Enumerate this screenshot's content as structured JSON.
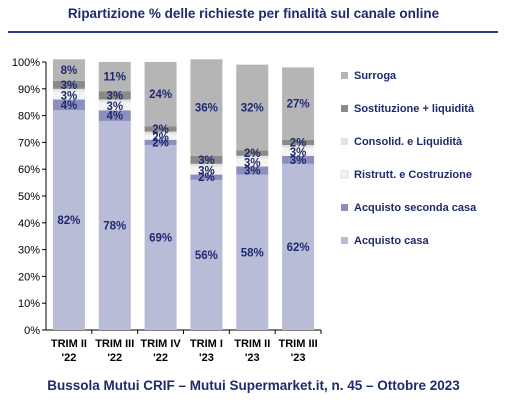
{
  "title": "Ripartizione % delle richieste per finalità sul canale online",
  "footer": "Bussola Mutui CRIF – Mutui Supermarket.it, n. 45 – Ottobre 2023",
  "chart_data": {
    "type": "bar",
    "stacked": true,
    "categories": [
      [
        "TRIM II",
        "'22"
      ],
      [
        "TRIM III",
        "'22"
      ],
      [
        "TRIM IV",
        "'22"
      ],
      [
        "TRIM I",
        "'23"
      ],
      [
        "TRIM II",
        "'23"
      ],
      [
        "TRIM III",
        "'23"
      ]
    ],
    "ylim": [
      0,
      100
    ],
    "yticks": [
      0,
      10,
      20,
      30,
      40,
      50,
      60,
      70,
      80,
      90,
      100
    ],
    "ytick_labels": [
      "0%",
      "10%",
      "20%",
      "30%",
      "40%",
      "50%",
      "60%",
      "70%",
      "80%",
      "90%",
      "100%"
    ],
    "grid": false,
    "legend_position": "right",
    "series": [
      {
        "name": "Acquisto casa",
        "color": "#b9bcd6",
        "values": [
          82,
          78,
          69,
          56,
          58,
          62
        ],
        "labels": [
          "82%",
          "78%",
          "69%",
          "56%",
          "58%",
          "62%"
        ]
      },
      {
        "name": "Acquisto seconda casa",
        "color": "#8c8fbd",
        "values": [
          4,
          4,
          2,
          2,
          3,
          3
        ],
        "labels": [
          "4%",
          "4%",
          "2%",
          "2%",
          "3%",
          "3%"
        ]
      },
      {
        "name": "Ristrutt. e Costruzione",
        "color": "#f4f4f4",
        "values": [
          3,
          3,
          2,
          3,
          3,
          3
        ],
        "labels": [
          "3%",
          "3%",
          "2%",
          "3%",
          "3%",
          "3%"
        ]
      },
      {
        "name": "Consolid. e Liquidità",
        "color": "#e3e3e3",
        "values": [
          1,
          1,
          1,
          1,
          1,
          1
        ],
        "labels": [
          "",
          "",
          "",
          "",
          "",
          ""
        ]
      },
      {
        "name": "Sostituzione + liquidità",
        "color": "#8a8a8a",
        "values": [
          3,
          3,
          2,
          3,
          2,
          2
        ],
        "labels": [
          "3%",
          "3%",
          "2%",
          "3%",
          "2%",
          "2%"
        ]
      },
      {
        "name": "Surroga",
        "color": "#b5b5b5",
        "values": [
          8,
          11,
          24,
          36,
          32,
          27
        ],
        "labels": [
          "8%",
          "11%",
          "24%",
          "36%",
          "32%",
          "27%"
        ]
      }
    ],
    "legend_order": [
      "Surroga",
      "Sostituzione + liquidità",
      "Consolid. e Liquidità",
      "Ristrutt. e Costruzione",
      "Acquisto seconda casa",
      "Acquisto casa"
    ]
  }
}
